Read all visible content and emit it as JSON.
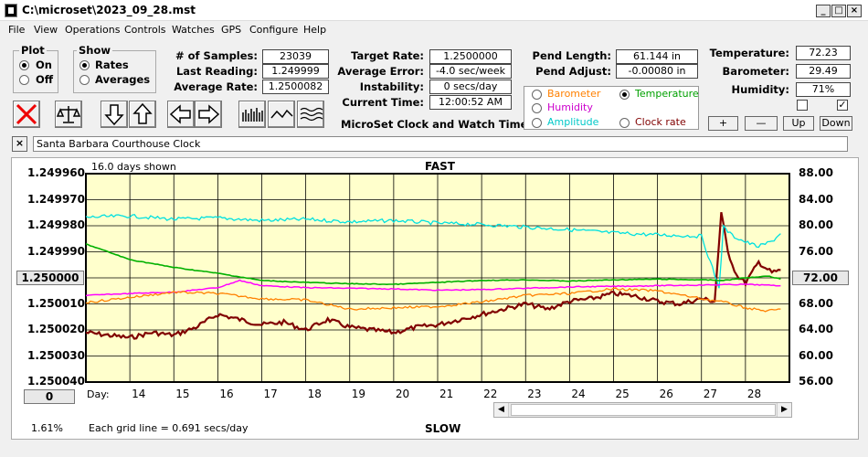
{
  "window": {
    "title": "C:\\microset\\2023_09_28.mst"
  },
  "menu": [
    "File",
    "View",
    "Operations",
    "Controls",
    "Watches",
    "GPS",
    "Configure",
    "Help"
  ],
  "plot": {
    "title": "Plot",
    "on": "On",
    "off": "Off",
    "selected": "On"
  },
  "show": {
    "title": "Show",
    "rates": "Rates",
    "averages": "Averages",
    "selected": "Rates"
  },
  "stats": {
    "samples_label": "# of Samples:",
    "samples": "23039",
    "last_label": "Last Reading:",
    "last": "1.249999",
    "avg_label": "Average Rate:",
    "avg": "1.2500082"
  },
  "rates": {
    "target_label": "Target Rate:",
    "target": "1.2500000",
    "error_label": "Average Error:",
    "error": "-4.0 sec/week",
    "instab_label": "Instability:",
    "instab": "0 secs/day",
    "time_label": "Current Time:",
    "time": "12:00:52 AM"
  },
  "app_name": "MicroSet Clock and Watch Timer",
  "pendulum": {
    "length_label": "Pend Length:",
    "length": "61.144 in",
    "adjust_label": "Pend Adjust:",
    "adjust": "-0.00080 in"
  },
  "legend": {
    "barometer": "Barometer",
    "temperature": "Temperature",
    "humidity": "Humidity",
    "amplitude": "Amplitude",
    "clock_rate": "Clock rate",
    "selected": "Temperature"
  },
  "env": {
    "temp_label": "Temperature:",
    "temp": "72.23",
    "baro_label": "Barometer:",
    "baro": "29.49",
    "hum_label": "Humidity:",
    "hum": "71%"
  },
  "scale_buttons": {
    "plus": "+",
    "minus": "—",
    "up": "Up",
    "down": "Down"
  },
  "watch_name": "Santa Barbara Courthouse Clock",
  "colors": {
    "rate": "#800000",
    "temperature": "#00e0e0",
    "humidity": "#ff00ff",
    "barometer": "#ff8000",
    "amplitude": "#00b000",
    "plot_bg": "#ffffcc"
  },
  "chart_data": {
    "type": "line",
    "days_shown": "16.0 days shown",
    "top_label": "FAST",
    "bottom_label": "SLOW",
    "x_axis_label": "Day:",
    "x_ticks": [
      14,
      15,
      16,
      17,
      18,
      19,
      20,
      21,
      22,
      23,
      24,
      25,
      26,
      27,
      28
    ],
    "xlim": [
      13.0,
      29.0
    ],
    "left_ticks": [
      "1.249960",
      "1.249970",
      "1.249980",
      "1.249990",
      "1.250000",
      "1.250010",
      "1.250020",
      "1.250030",
      "1.250040"
    ],
    "left_range": [
      1.24996,
      1.25004
    ],
    "center_value": "1.250000",
    "right_ticks": [
      "88.00",
      "84.00",
      "80.00",
      "76.00",
      "72.00",
      "68.00",
      "64.00",
      "60.00",
      "56.00"
    ],
    "right_range": [
      56,
      88
    ],
    "right_center": "72.00",
    "offset_button": "0",
    "grid_note": "Each grid line = 0.691 secs/day",
    "percent": "1.61%",
    "series": [
      {
        "name": "Clock rate",
        "axis": "left",
        "x": [
          13.0,
          13.5,
          14.0,
          14.5,
          15.0,
          15.5,
          16.0,
          16.5,
          17.0,
          17.5,
          18.0,
          18.5,
          19.0,
          19.5,
          20.0,
          20.5,
          21.0,
          21.5,
          22.0,
          22.5,
          23.0,
          23.5,
          24.0,
          24.5,
          25.0,
          25.5,
          26.0,
          26.5,
          27.0,
          27.3,
          27.45,
          27.6,
          27.8,
          28.0,
          28.3,
          28.6,
          28.8
        ],
        "y": [
          1.250021,
          1.250022,
          1.250023,
          1.250021,
          1.250022,
          1.250019,
          1.250014,
          1.250016,
          1.250018,
          1.250017,
          1.25002,
          1.250016,
          1.250019,
          1.25002,
          1.250021,
          1.250019,
          1.250018,
          1.250016,
          1.250014,
          1.250012,
          1.25001,
          1.250012,
          1.250009,
          1.250008,
          1.250006,
          1.250007,
          1.250009,
          1.25001,
          1.250008,
          1.250009,
          1.249975,
          1.24999,
          1.249999,
          1.250002,
          1.249994,
          1.249998,
          1.249997
        ]
      },
      {
        "name": "Temperature",
        "axis": "right",
        "x": [
          13.0,
          14.0,
          15.0,
          16.0,
          17.0,
          18.0,
          19.0,
          20.0,
          21.0,
          22.0,
          23.0,
          24.0,
          25.0,
          26.0,
          27.0,
          27.4,
          27.5,
          27.7,
          28.0,
          28.3,
          28.6,
          28.8
        ],
        "y": [
          81.3,
          81.5,
          81.0,
          81.2,
          80.8,
          81.0,
          80.6,
          80.8,
          80.4,
          80.2,
          79.8,
          79.4,
          78.9,
          78.6,
          78.4,
          70.5,
          79.8,
          78.5,
          77.5,
          76.8,
          77.6,
          78.8
        ]
      },
      {
        "name": "Humidity",
        "axis": "right",
        "x": [
          13.0,
          14.0,
          15.0,
          16.0,
          16.5,
          17.0,
          18.0,
          19.0,
          20.0,
          21.0,
          22.0,
          23.0,
          24.0,
          25.0,
          26.0,
          27.0,
          28.0,
          28.8
        ],
        "y": [
          69.3,
          69.6,
          69.8,
          70.5,
          71.6,
          70.8,
          70.5,
          70.4,
          70.3,
          70.1,
          70.2,
          70.4,
          70.6,
          70.7,
          70.8,
          70.9,
          71.0,
          70.8
        ]
      },
      {
        "name": "Barometer",
        "axis": "right",
        "x": [
          13.0,
          14.0,
          15.0,
          16.0,
          17.0,
          18.0,
          19.0,
          20.0,
          21.0,
          22.0,
          23.0,
          24.0,
          25.0,
          26.0,
          27.0,
          27.5,
          28.0,
          28.5,
          28.8
        ],
        "y": [
          68.2,
          69.0,
          69.8,
          69.6,
          68.8,
          68.6,
          67.2,
          67.4,
          67.6,
          68.3,
          69.3,
          69.6,
          70.3,
          70.0,
          68.8,
          68.3,
          67.4,
          66.9,
          67.2
        ]
      },
      {
        "name": "Amplitude",
        "axis": "right",
        "x": [
          13.0,
          14.0,
          15.0,
          16.0,
          17.0,
          18.0,
          19.0,
          20.0,
          21.0,
          22.0,
          23.0,
          24.0,
          25.0,
          26.0,
          27.0,
          27.5,
          28.0,
          28.5,
          28.8
        ],
        "y": [
          77.2,
          74.8,
          73.6,
          72.7,
          71.6,
          71.3,
          71.1,
          71.0,
          71.3,
          71.6,
          71.7,
          71.5,
          71.7,
          71.8,
          71.7,
          71.6,
          72.0,
          72.3,
          71.8
        ]
      }
    ]
  }
}
